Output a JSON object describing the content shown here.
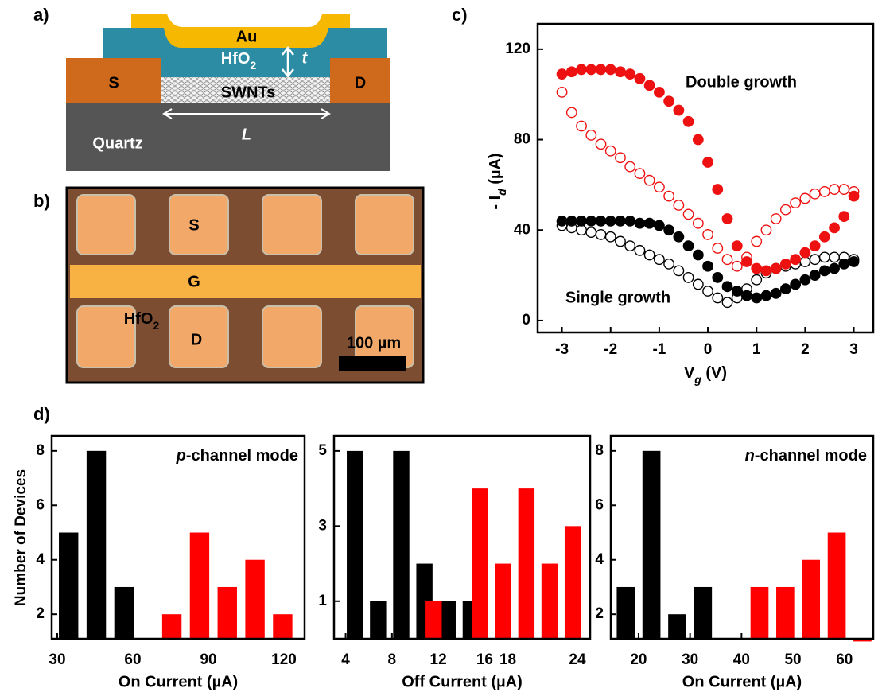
{
  "panel_labels": [
    "a)",
    "b)",
    "c)",
    "d)"
  ],
  "diagram_a": {
    "au": "Au",
    "hfo2": [
      "HfO",
      "2"
    ],
    "thickness": "t",
    "source": "S",
    "drain": "D",
    "swnts": "SWNTs",
    "substrate": "Quartz",
    "length": "L"
  },
  "photo_b": {
    "source": "S",
    "gate": "G",
    "hfo2": [
      "HfO",
      "2"
    ],
    "drain": "D",
    "scale_bar": "100 µm"
  },
  "chart_data": [
    {
      "type": "scatter",
      "xlabel": [
        "V",
        "g",
        " (V)"
      ],
      "ylabel": [
        "- I",
        "d",
        " (µA)"
      ],
      "annotations": [
        "Double growth",
        "Single growth"
      ],
      "x": [
        -3,
        -2.8,
        -2.6,
        -2.4,
        -2.2,
        -2,
        -1.8,
        -1.6,
        -1.4,
        -1.2,
        -1,
        -0.8,
        -0.6,
        -0.4,
        -0.2,
        0,
        0.2,
        0.4,
        0.6,
        0.8,
        1,
        1.2,
        1.4,
        1.6,
        1.8,
        2,
        2.2,
        2.4,
        2.6,
        2.8,
        3
      ],
      "xlim": [
        -3.5,
        3.4
      ],
      "xticks": [
        -3,
        -2,
        -1,
        0,
        1,
        2,
        3
      ],
      "ylim": [
        -5.3,
        131.2
      ],
      "yticks": [
        0,
        40,
        80,
        120
      ],
      "series": [
        {
          "color": "#000000",
          "filled": false,
          "values": [
            42,
            41,
            40,
            39,
            38,
            37,
            35,
            33,
            31,
            29,
            27,
            25,
            22,
            19,
            16,
            13,
            10,
            8,
            10,
            14,
            18,
            21,
            23,
            24,
            25,
            26,
            27,
            28,
            28,
            28,
            27
          ]
        },
        {
          "color": "#000000",
          "filled": true,
          "values": [
            44,
            44,
            44,
            44,
            44,
            44,
            44,
            44,
            43,
            43,
            42,
            40,
            37,
            33,
            29,
            24,
            19,
            15,
            13,
            11,
            10,
            11,
            12,
            14,
            16,
            18,
            20,
            22,
            23,
            25,
            26
          ]
        },
        {
          "color": "#ee1111",
          "filled": false,
          "values": [
            101,
            92,
            86,
            82,
            78,
            75,
            72,
            68,
            65,
            62,
            59,
            55,
            51,
            47,
            43,
            38,
            32,
            27,
            24,
            28,
            35,
            40,
            45,
            49,
            52,
            54,
            56,
            57,
            58,
            58,
            57
          ]
        },
        {
          "color": "#ee1111",
          "filled": true,
          "values": [
            109,
            110,
            111,
            111,
            111,
            111,
            110,
            109,
            107,
            104,
            101,
            97,
            93,
            88,
            80,
            70,
            58,
            45,
            33,
            26,
            23,
            22,
            23,
            25,
            27,
            30,
            33,
            37,
            41,
            46,
            55
          ]
        }
      ]
    },
    {
      "type": "histogram",
      "ylabel": "Number of Devices",
      "xlabel": "On Current (µA)",
      "annotation": [
        "p",
        "-channel mode"
      ],
      "xlim": [
        27.8,
        128.2
      ],
      "xticks": [
        30,
        60,
        90,
        120
      ],
      "ylim": [
        1.1,
        8.55
      ],
      "yticks": [
        2,
        4,
        6,
        8
      ],
      "series": [
        {
          "color": "#000000",
          "bins": [
            29,
            40,
            51,
            62
          ],
          "counts": [
            5,
            8,
            3
          ]
        },
        {
          "color": "#ff0000",
          "bins": [
            70,
            81,
            92,
            103,
            114,
            125
          ],
          "counts": [
            2,
            5,
            3,
            4,
            2
          ]
        }
      ]
    },
    {
      "type": "histogram",
      "xlabel": "Off Current (µA)",
      "xlim": [
        3,
        25.1
      ],
      "xticks": [
        4,
        8,
        12,
        16,
        18,
        24
      ],
      "ylim": [
        0,
        5.4
      ],
      "yticks": [
        1,
        3,
        5
      ],
      "series": [
        {
          "color": "#000000",
          "bins": [
            3.8,
            5.8,
            7.8,
            9.8,
            11.8,
            13.8,
            15.8
          ],
          "counts": [
            5,
            1,
            5,
            2,
            1,
            1
          ]
        },
        {
          "color": "#ff0000",
          "bins": [
            10.6,
            12.6,
            14.6,
            16.6,
            18.6,
            20.6,
            22.6,
            24.6
          ],
          "counts": [
            1,
            0,
            4,
            2,
            4,
            2,
            3
          ]
        }
      ]
    },
    {
      "type": "histogram",
      "xlabel": "On Current (µA)",
      "annotation": [
        "n",
        "-channel mode"
      ],
      "xlim": [
        14.6,
        65.6
      ],
      "xticks": [
        20,
        30,
        40,
        50,
        60
      ],
      "ylim": [
        1.1,
        8.55
      ],
      "yticks": [
        2,
        4,
        6,
        8
      ],
      "series": [
        {
          "color": "#000000",
          "bins": [
            15,
            20,
            25,
            30,
            35
          ],
          "counts": [
            3,
            8,
            2,
            3
          ]
        },
        {
          "color": "#ff0000",
          "bins": [
            41,
            46,
            51,
            56,
            61,
            66
          ],
          "counts": [
            3,
            3,
            4,
            5,
            1
          ]
        }
      ]
    }
  ]
}
